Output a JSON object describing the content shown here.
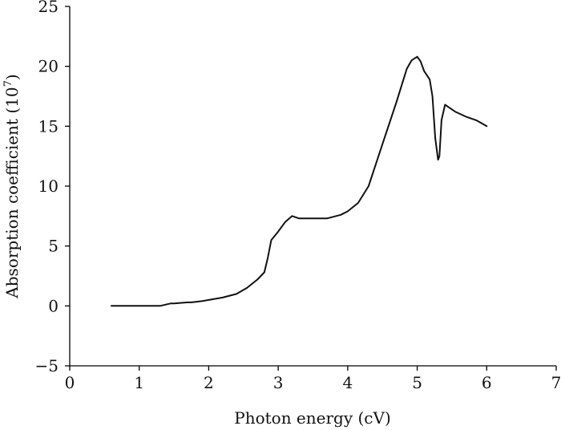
{
  "chart_data": {
    "type": "line",
    "title": "",
    "xlabel": "Photon energy (cV)",
    "ylabel": "Absorption coefficient (10",
    "ylabel_superscript": "7",
    "ylabel_suffix": ")",
    "xlim": [
      0,
      7
    ],
    "ylim": [
      -5,
      25
    ],
    "xticks": [
      0,
      1,
      2,
      3,
      4,
      5,
      6,
      7
    ],
    "yticks": [
      -5,
      0,
      5,
      10,
      15,
      20,
      25
    ],
    "xtick_labels": [
      "0",
      "1",
      "2",
      "3",
      "4",
      "5",
      "6",
      "7"
    ],
    "ytick_labels": [
      "−5",
      "0",
      "5",
      "10",
      "15",
      "20",
      "25"
    ],
    "grid": false,
    "legend": "none",
    "series": [
      {
        "color": "#111111",
        "x": [
          0.6,
          1.0,
          1.3,
          1.45,
          1.5,
          1.7,
          1.75,
          1.9,
          2.0,
          2.2,
          2.4,
          2.55,
          2.7,
          2.8,
          2.85,
          2.9,
          3.0,
          3.1,
          3.2,
          3.3,
          3.5,
          3.7,
          3.9,
          4.0,
          4.15,
          4.3,
          4.5,
          4.7,
          4.85,
          4.92,
          5.0,
          5.05,
          5.1,
          5.18,
          5.22,
          5.26,
          5.3,
          5.32,
          5.35,
          5.4,
          5.45,
          5.55,
          5.7,
          5.85,
          6.0
        ],
        "y": [
          0,
          0,
          0,
          0.2,
          0.2,
          0.3,
          0.3,
          0.4,
          0.5,
          0.7,
          1.0,
          1.5,
          2.2,
          2.8,
          4.0,
          5.5,
          6.2,
          7.0,
          7.5,
          7.3,
          7.3,
          7.3,
          7.6,
          7.9,
          8.6,
          10.0,
          13.5,
          17.0,
          19.8,
          20.5,
          20.8,
          20.4,
          19.6,
          18.9,
          17.5,
          14.0,
          12.2,
          12.5,
          15.5,
          16.8,
          16.6,
          16.2,
          15.8,
          15.5,
          15.0
        ]
      }
    ]
  }
}
